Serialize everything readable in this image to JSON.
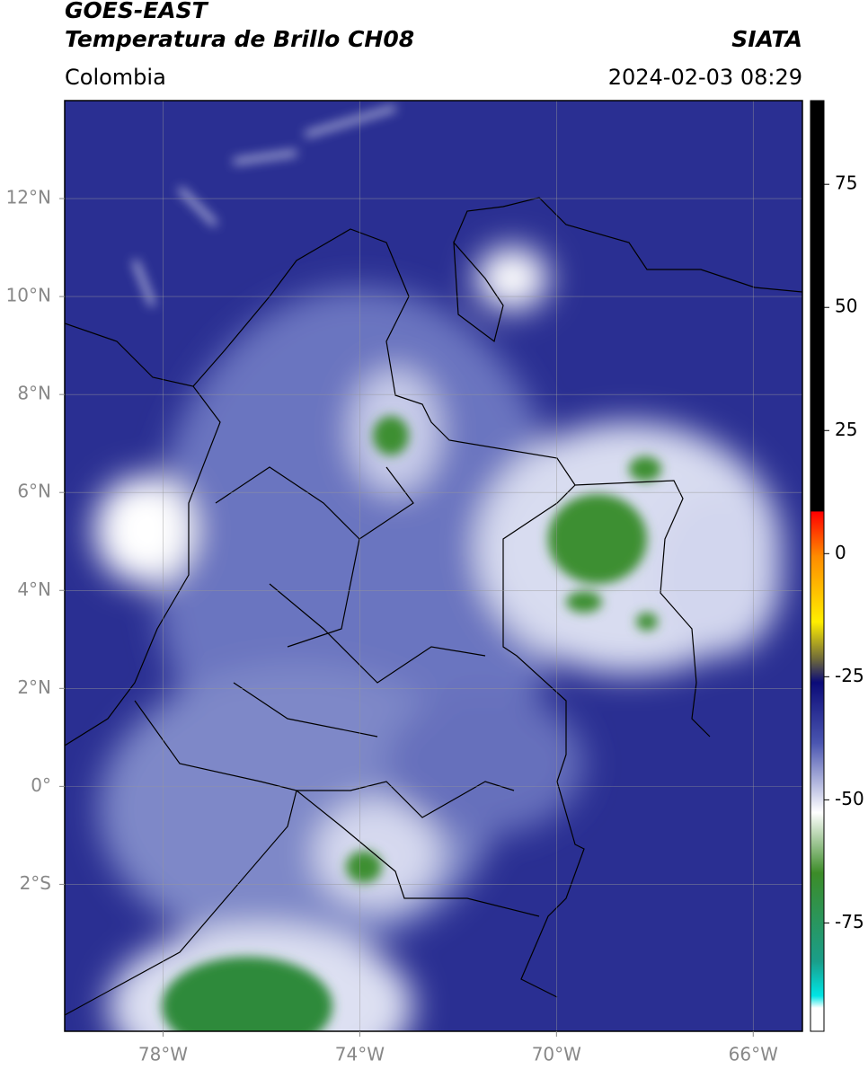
{
  "header": {
    "title_line1": "GOES-EAST",
    "title_line2": "Temperatura de Brillo CH08",
    "source": "SIATA",
    "region": "Colombia",
    "timestamp": "2024-02-03 08:29"
  },
  "map": {
    "xlim": [
      -80,
      -65
    ],
    "ylim": [
      -5,
      14
    ],
    "xticks": [
      {
        "value": -78,
        "label": "78°W"
      },
      {
        "value": -74,
        "label": "74°W"
      },
      {
        "value": -70,
        "label": "70°W"
      },
      {
        "value": -66,
        "label": "66°W"
      }
    ],
    "yticks": [
      {
        "value": 12,
        "label": "12°N"
      },
      {
        "value": 10,
        "label": "10°N"
      },
      {
        "value": 8,
        "label": "8°N"
      },
      {
        "value": 6,
        "label": "6°N"
      },
      {
        "value": 4,
        "label": "4°N"
      },
      {
        "value": 2,
        "label": "2°N"
      },
      {
        "value": 0,
        "label": "0°"
      },
      {
        "value": -2,
        "label": "2°S"
      }
    ],
    "grid": true
  },
  "colorbar": {
    "lim": [
      -97,
      92
    ],
    "ticks": [
      75,
      50,
      25,
      0,
      -25,
      -50,
      -75
    ]
  }
}
